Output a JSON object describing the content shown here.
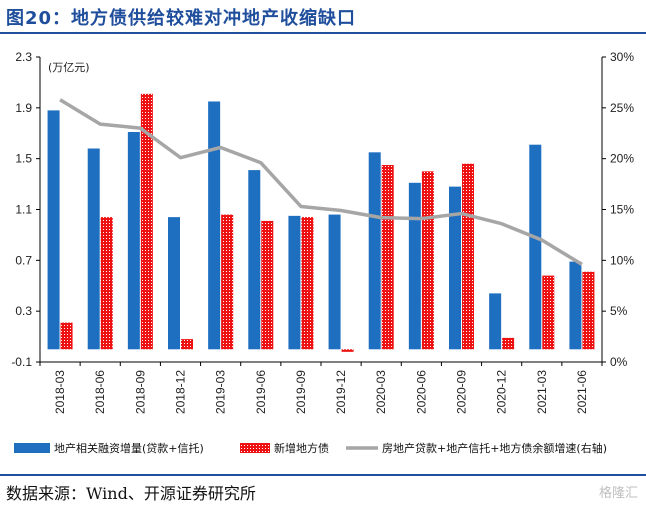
{
  "title": "图20：地方债供给较难对冲地产收缩缺口",
  "source": "数据来源：Wind、开源证券研究所",
  "watermark": "格隆汇",
  "colors": {
    "series1": "#1f6fc1",
    "series2": "#ee1111",
    "series3": "#a6a6a6",
    "rule": "#1f4e9c"
  },
  "chart_data": {
    "type": "bar",
    "categories": [
      "2018-03",
      "2018-06",
      "2018-09",
      "2018-12",
      "2019-03",
      "2019-06",
      "2019-09",
      "2019-12",
      "2020-03",
      "2020-06",
      "2020-09",
      "2020-12",
      "2021-03",
      "2021-06"
    ],
    "unit_label": "(万亿元)",
    "y_left": {
      "min": -0.1,
      "max": 2.3,
      "ticks": [
        "2.3",
        "1.9",
        "1.5",
        "1.1",
        "0.7",
        "0.3",
        "-0.1"
      ]
    },
    "y_right": {
      "min": 0,
      "max": 30,
      "ticks": [
        "30%",
        "25%",
        "20%",
        "15%",
        "10%",
        "5%",
        "0%"
      ]
    },
    "grid": false,
    "legend_position": "bottom",
    "series": [
      {
        "name": "地产相关融资增量(贷款+信托)",
        "type": "bar",
        "axis": "left",
        "values": [
          1.88,
          1.58,
          1.71,
          1.04,
          1.95,
          1.41,
          1.05,
          1.06,
          1.55,
          1.31,
          1.28,
          0.44,
          1.61,
          0.69
        ]
      },
      {
        "name": "新增地方债",
        "type": "bar",
        "axis": "left",
        "values": [
          0.21,
          1.04,
          2.01,
          0.08,
          1.06,
          1.01,
          1.04,
          -0.02,
          1.45,
          1.4,
          1.46,
          0.09,
          0.58,
          0.61
        ]
      },
      {
        "name": "房地产贷款+地产信托+地方债余额增速(右轴)",
        "type": "line",
        "axis": "right",
        "values": [
          25.8,
          23.4,
          23.0,
          20.1,
          21.1,
          19.6,
          15.3,
          14.9,
          14.2,
          14.1,
          14.6,
          13.6,
          12.0,
          9.6
        ]
      }
    ]
  }
}
